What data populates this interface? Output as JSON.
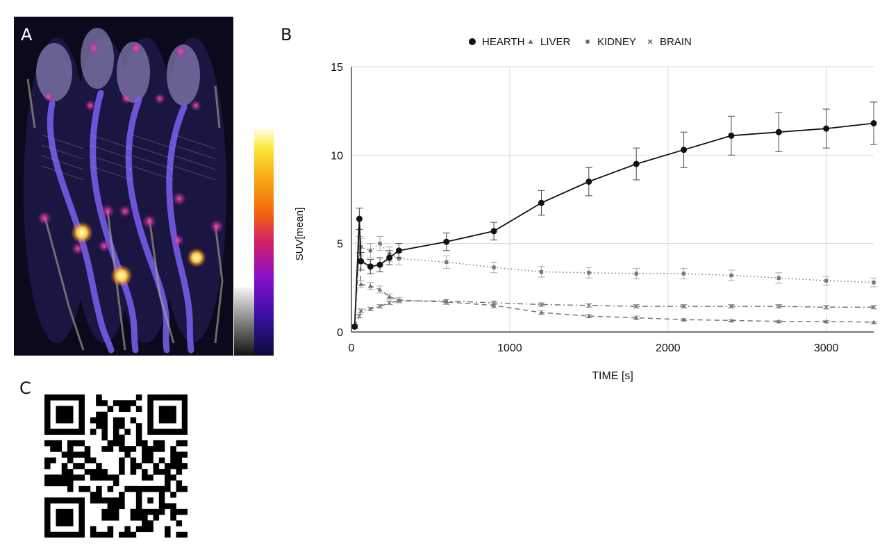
{
  "panels": {
    "a_label": "A",
    "b_label": "B",
    "c_label": "C"
  },
  "image_a": {
    "description_icon": "pet-ct-mice-icon",
    "colorbar_colors": [
      "#0b0b3a",
      "#3a10a8",
      "#8a10c8",
      "#d0206a",
      "#f06010",
      "#f8a810",
      "#fbe840",
      "#fffde0"
    ]
  },
  "chart_data": {
    "type": "line",
    "title": "",
    "xlabel": "TIME [s]",
    "ylabel": "SUV[mean]",
    "xlim": [
      0,
      3300
    ],
    "ylim": [
      0,
      15
    ],
    "x_ticks": [
      0,
      1000,
      2000,
      3000
    ],
    "y_ticks": [
      0,
      5,
      10,
      15
    ],
    "grid": true,
    "legend_position": "top",
    "series": [
      {
        "name": "HEARTH",
        "marker": "circle",
        "style": "solid",
        "color": "#111111",
        "x": [
          20,
          50,
          60,
          120,
          180,
          240,
          300,
          600,
          900,
          1200,
          1500,
          1800,
          2100,
          2400,
          2700,
          3000,
          3300
        ],
        "y": [
          0.3,
          6.4,
          4.0,
          3.7,
          3.8,
          4.2,
          4.6,
          5.1,
          5.7,
          7.3,
          8.5,
          9.5,
          10.3,
          11.1,
          11.3,
          11.5,
          11.8
        ],
        "err": [
          0.1,
          0.6,
          0.5,
          0.4,
          0.4,
          0.4,
          0.4,
          0.5,
          0.5,
          0.7,
          0.8,
          0.9,
          1.0,
          1.1,
          1.1,
          1.1,
          1.2
        ]
      },
      {
        "name": "LIVER",
        "marker": "triangle",
        "style": "dashed",
        "color": "#777777",
        "x": [
          20,
          50,
          60,
          120,
          180,
          240,
          300,
          600,
          900,
          1200,
          1500,
          1800,
          2100,
          2400,
          2700,
          3000,
          3300
        ],
        "y": [
          0.3,
          4.8,
          2.7,
          2.6,
          2.4,
          2.0,
          1.8,
          1.7,
          1.5,
          1.1,
          0.9,
          0.8,
          0.7,
          0.65,
          0.6,
          0.6,
          0.55
        ],
        "err": [
          0.1,
          0.3,
          0.2,
          0.2,
          0.2,
          0.15,
          0.15,
          0.15,
          0.15,
          0.1,
          0.1,
          0.1,
          0.05,
          0.05,
          0.05,
          0.05,
          0.05
        ]
      },
      {
        "name": "KIDNEY",
        "marker": "square",
        "style": "dotted",
        "color": "#777777",
        "x": [
          20,
          50,
          60,
          120,
          180,
          240,
          300,
          600,
          900,
          1200,
          1500,
          1800,
          2100,
          2400,
          2700,
          3000,
          3300
        ],
        "y": [
          0.3,
          4.9,
          4.8,
          4.6,
          5.0,
          4.4,
          4.15,
          3.95,
          3.65,
          3.4,
          3.35,
          3.3,
          3.3,
          3.2,
          3.05,
          2.9,
          2.8
        ],
        "err": [
          0.1,
          0.5,
          0.5,
          0.4,
          0.4,
          0.4,
          0.35,
          0.35,
          0.3,
          0.3,
          0.3,
          0.3,
          0.3,
          0.3,
          0.3,
          0.25,
          0.25
        ]
      },
      {
        "name": "BRAIN",
        "marker": "cross",
        "style": "dashdot",
        "color": "#777777",
        "x": [
          20,
          50,
          60,
          120,
          180,
          240,
          300,
          600,
          900,
          1200,
          1500,
          1800,
          2100,
          2400,
          2700,
          3000,
          3300
        ],
        "y": [
          0.3,
          0.9,
          1.2,
          1.3,
          1.45,
          1.65,
          1.75,
          1.75,
          1.65,
          1.55,
          1.5,
          1.45,
          1.45,
          1.45,
          1.45,
          1.4,
          1.4
        ],
        "err": [
          0.05,
          0.1,
          0.1,
          0.1,
          0.1,
          0.1,
          0.1,
          0.1,
          0.1,
          0.1,
          0.1,
          0.1,
          0.1,
          0.1,
          0.1,
          0.1,
          0.1
        ]
      }
    ]
  },
  "qr_code": {
    "icon": "qr-code-icon"
  }
}
